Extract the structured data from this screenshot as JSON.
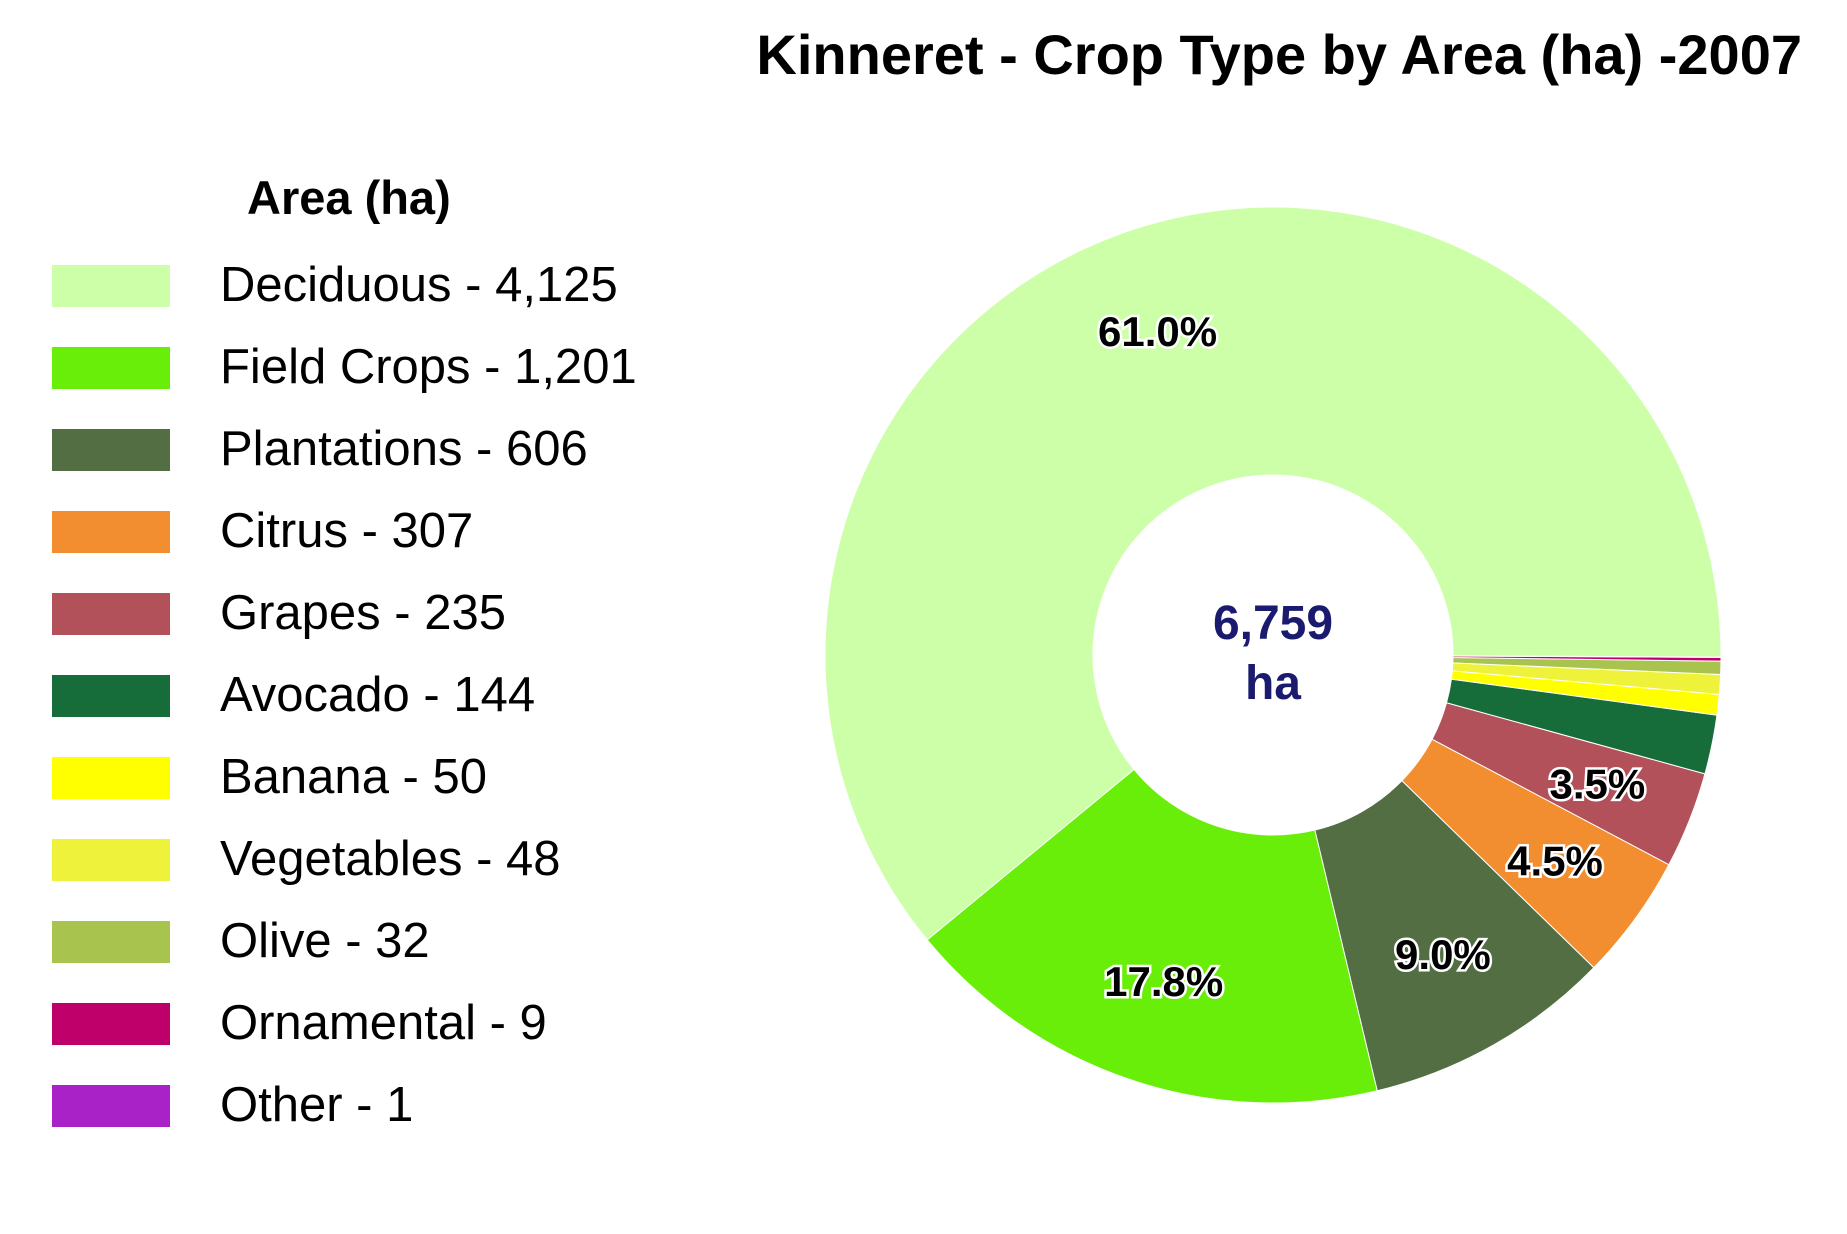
{
  "chart_data": {
    "type": "pie",
    "title": "Kinneret - Crop Type by Area (ha) -2007",
    "legend_title": "Area (ha)",
    "legend_position": "left",
    "donut": true,
    "center_text": [
      "6,759",
      "ha"
    ],
    "slices": [
      {
        "name": "Deciduous",
        "value": 4125,
        "legend_label": "Deciduous - 4,125",
        "pct_label": "61.0%",
        "color": "#ccffa8"
      },
      {
        "name": "Field Crops",
        "value": 1201,
        "legend_label": "Field Crops - 1,201",
        "pct_label": "17.8%",
        "color": "#69ee0a"
      },
      {
        "name": "Plantations",
        "value": 606,
        "legend_label": "Plantations - 606",
        "pct_label": "9.0%",
        "color": "#526e42"
      },
      {
        "name": "Citrus",
        "value": 307,
        "legend_label": "Citrus - 307",
        "pct_label": "4.5%",
        "color": "#f28e2f"
      },
      {
        "name": "Grapes",
        "value": 235,
        "legend_label": "Grapes - 235",
        "pct_label": "3.5%",
        "color": "#b2515a"
      },
      {
        "name": "Avocado",
        "value": 144,
        "legend_label": "Avocado - 144",
        "pct_label": "",
        "color": "#176d3a"
      },
      {
        "name": "Banana",
        "value": 50,
        "legend_label": "Banana - 50",
        "pct_label": "",
        "color": "#ffff00"
      },
      {
        "name": "Vegetables",
        "value": 48,
        "legend_label": "Vegetables - 48",
        "pct_label": "",
        "color": "#eef23a"
      },
      {
        "name": "Olive",
        "value": 32,
        "legend_label": "Olive - 32",
        "pct_label": "",
        "color": "#a8c44e"
      },
      {
        "name": "Ornamental",
        "value": 9,
        "legend_label": "Ornamental - 9",
        "pct_label": "",
        "color": "#c0006a"
      },
      {
        "name": "Other",
        "value": 1,
        "legend_label": "Other - 1",
        "pct_label": "",
        "color": "#a822c8"
      }
    ]
  }
}
